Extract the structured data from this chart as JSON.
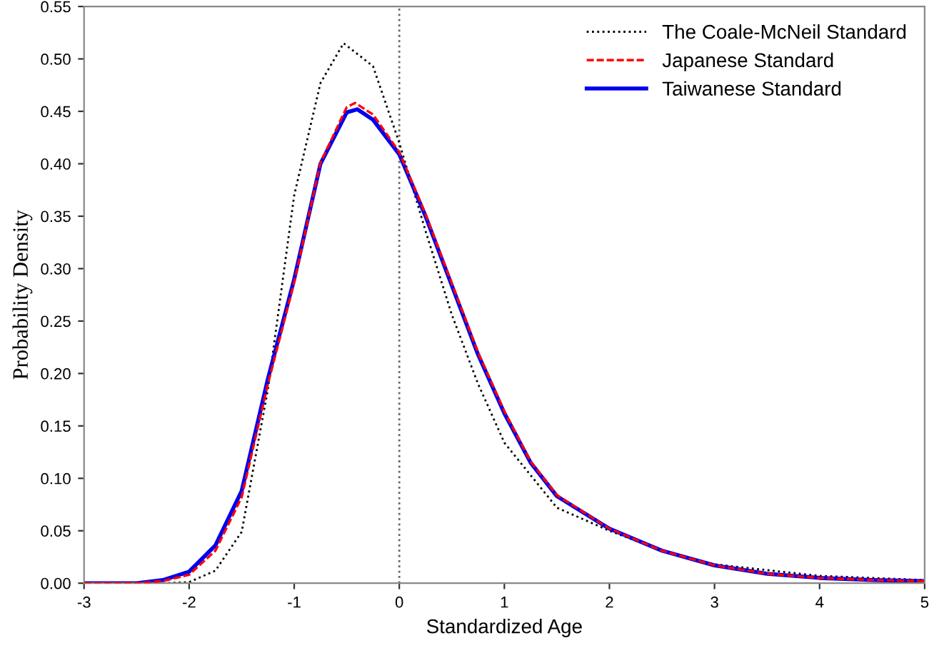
{
  "chart_data": {
    "type": "line",
    "xlabel": "Standardized Age",
    "ylabel": "Probability Density",
    "xlim": [
      -3,
      5
    ],
    "ylim": [
      0,
      0.55
    ],
    "xticks": [
      -3,
      -2,
      -1,
      0,
      1,
      2,
      3,
      4,
      5
    ],
    "yticks": [
      {
        "value": 0,
        "label": "0.00"
      },
      {
        "value": 0.05,
        "label": "0.05"
      },
      {
        "value": 0.1,
        "label": "0.10"
      },
      {
        "value": 0.15,
        "label": "0.15"
      },
      {
        "value": 0.2,
        "label": "0.20"
      },
      {
        "value": 0.25,
        "label": "0.25"
      },
      {
        "value": 0.3,
        "label": "0.30"
      },
      {
        "value": 0.35,
        "label": "0.35"
      },
      {
        "value": 0.4,
        "label": "0.40"
      },
      {
        "value": 0.45,
        "label": "0.45"
      },
      {
        "value": 0.5,
        "label": "0.50"
      },
      {
        "value": 0.55,
        "label": "0.55"
      }
    ],
    "grid": false,
    "legend": "top right",
    "marker": "none",
    "ref_lines": [
      {
        "axis": "x",
        "value": 0,
        "color": "#666666",
        "line_style": "dotted"
      }
    ],
    "series": [
      {
        "name": "The Coale-McNeil Standard",
        "color": "#000000",
        "line_style": "dotted",
        "x": [
          -3,
          -2.5,
          -2.25,
          -2,
          -1.75,
          -1.5,
          -1.25,
          -1,
          -0.75,
          -0.53,
          -0.25,
          0,
          0.25,
          0.5,
          0.75,
          1,
          1.5,
          2,
          2.5,
          3,
          4,
          5
        ],
        "values": [
          0,
          0,
          0,
          0.001,
          0.012,
          0.049,
          0.185,
          0.37,
          0.477,
          0.515,
          0.493,
          0.42,
          0.336,
          0.256,
          0.19,
          0.134,
          0.072,
          0.05,
          0.031,
          0.018,
          0.007,
          0.003
        ]
      },
      {
        "name": "Japanese Standard",
        "color": "#ff0000",
        "line_style": "dashed",
        "x": [
          -3,
          -2.5,
          -2.25,
          -2,
          -1.75,
          -1.5,
          -1.25,
          -1,
          -0.75,
          -0.5,
          -0.42,
          -0.25,
          0,
          0.25,
          0.5,
          0.75,
          1,
          1.25,
          1.5,
          2,
          2.5,
          3,
          3.5,
          4,
          4.5,
          5
        ],
        "values": [
          0,
          0,
          0.002,
          0.008,
          0.031,
          0.082,
          0.19,
          0.287,
          0.401,
          0.454,
          0.458,
          0.447,
          0.411,
          0.352,
          0.286,
          0.22,
          0.164,
          0.116,
          0.084,
          0.052,
          0.031,
          0.017,
          0.009,
          0.005,
          0.003,
          0.002
        ]
      },
      {
        "name": "Taiwanese Standard",
        "color": "#0000ee",
        "line_style": "solid",
        "x": [
          -3,
          -2.5,
          -2.25,
          -2,
          -1.75,
          -1.5,
          -1.25,
          -1,
          -0.75,
          -0.5,
          -0.4,
          -0.25,
          0,
          0.25,
          0.5,
          0.75,
          1,
          1.25,
          1.5,
          2,
          2.5,
          3,
          3.5,
          4,
          4.5,
          5
        ],
        "values": [
          0,
          0,
          0.003,
          0.011,
          0.036,
          0.088,
          0.195,
          0.29,
          0.4,
          0.449,
          0.452,
          0.442,
          0.409,
          0.35,
          0.284,
          0.218,
          0.162,
          0.115,
          0.083,
          0.052,
          0.031,
          0.017,
          0.009,
          0.005,
          0.003,
          0.002
        ]
      }
    ]
  }
}
